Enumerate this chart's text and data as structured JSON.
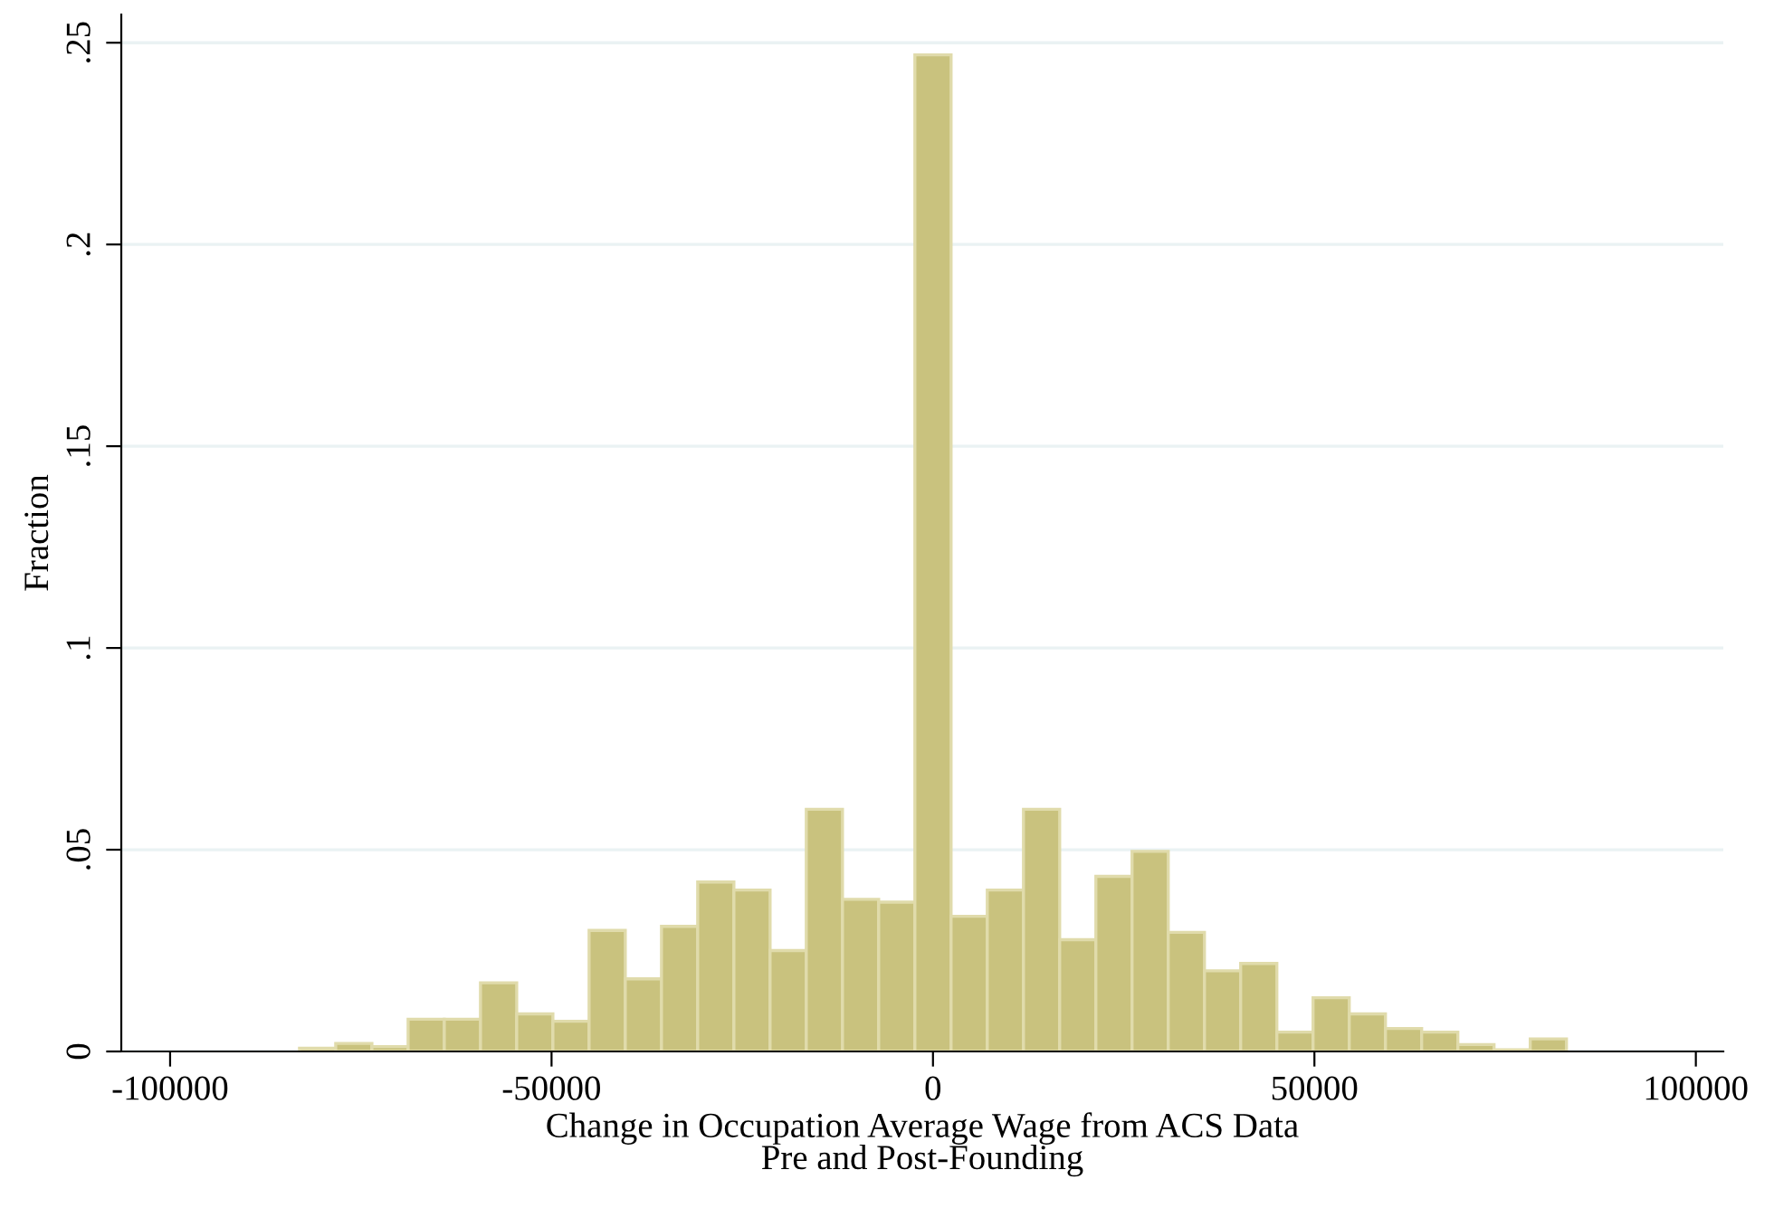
{
  "chart_data": {
    "type": "histogram",
    "xlabel": "Change in Occupation Average Wage from ACS Data\nPre and Post-Founding",
    "ylabel": "Fraction",
    "bins": [
      -83037.5,
      -78292.5,
      -73547.5,
      -68802.5,
      -64057.5,
      -59312.5,
      -54567.5,
      -49822.5,
      -45077.5,
      -40332.5,
      -35587.5,
      -30842.5,
      -26097.5,
      -21352.5,
      -16607.5,
      -11862.5,
      -7117.5,
      -2372.5,
      2372.5,
      7117.5,
      11862.5,
      16607.5,
      21352.5,
      26097.5,
      30842.5,
      35587.5,
      40332.5,
      45077.5,
      49822.5,
      54567.5,
      59312.5,
      64057.5,
      68802.5,
      73547.5,
      78292.5,
      83037.5
    ],
    "values": [
      0.0008,
      0.002,
      0.0012,
      0.008,
      0.008,
      0.017,
      0.0093,
      0.0075,
      0.03,
      0.018,
      0.031,
      0.042,
      0.04,
      0.025,
      0.06,
      0.0377,
      0.037,
      0.247,
      0.0335,
      0.04,
      0.06,
      0.0277,
      0.0434,
      0.0496,
      0.0295,
      0.02,
      0.0218,
      0.0048,
      0.0133,
      0.0093,
      0.0057,
      0.0048,
      0.0017,
      0.0004,
      0.0031
    ],
    "color": "#c9c27e",
    "xlim": [
      -106400,
      103600
    ],
    "ylim": [
      0,
      0.257
    ],
    "xticks": [
      -100000,
      -50000,
      0,
      50000,
      100000
    ],
    "yticks": [
      0,
      {
        "value": 0.05,
        "label": ".05"
      },
      {
        "value": 0.1,
        "label": ".1"
      },
      {
        "value": 0.15,
        "label": ".15"
      },
      {
        "value": 0.2,
        "label": ".2"
      },
      {
        "value": 0.25,
        "label": ".25"
      }
    ],
    "grid": "y"
  }
}
